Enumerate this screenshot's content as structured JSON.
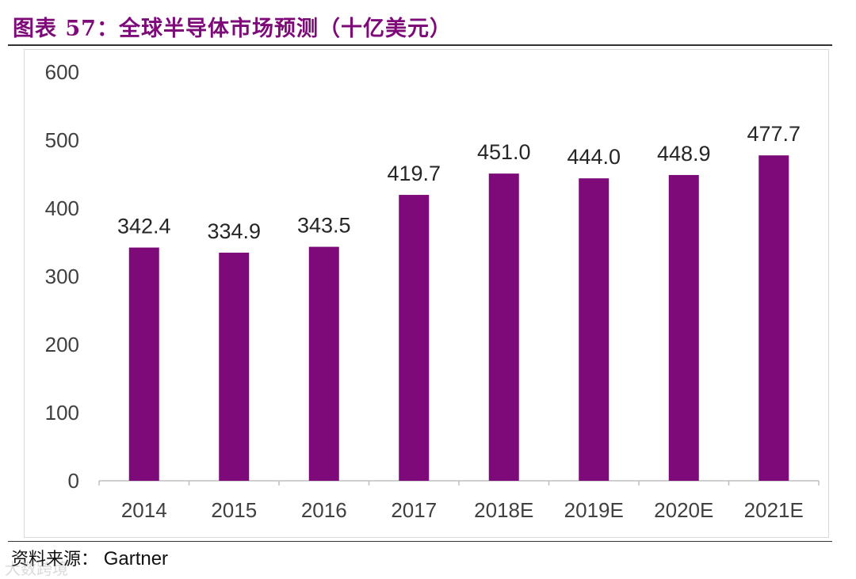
{
  "figure": {
    "title": "图表 57：全球半导体市场预测（十亿美元）",
    "source_label": "资料来源：",
    "source_value": "Gartner",
    "watermark": "大数跨境"
  },
  "colors": {
    "bar": "#7d0a78",
    "title": "#7d0a78",
    "axis": "#bfbfbf",
    "text": "#404040"
  },
  "chart_data": {
    "type": "bar",
    "categories": [
      "2014",
      "2015",
      "2016",
      "2017",
      "2018E",
      "2019E",
      "2020E",
      "2021E"
    ],
    "values": [
      342.4,
      334.9,
      343.5,
      419.7,
      451.0,
      444.0,
      448.9,
      477.7
    ],
    "data_labels": [
      "342.4",
      "334.9",
      "343.5",
      "419.7",
      "451.0",
      "444.0",
      "448.9",
      "477.7"
    ],
    "yticks": [
      0,
      100,
      200,
      300,
      400,
      500,
      600
    ],
    "ylim": [
      0,
      600
    ],
    "title": "",
    "xlabel": "",
    "ylabel": "",
    "grid": false,
    "legend": "none"
  }
}
